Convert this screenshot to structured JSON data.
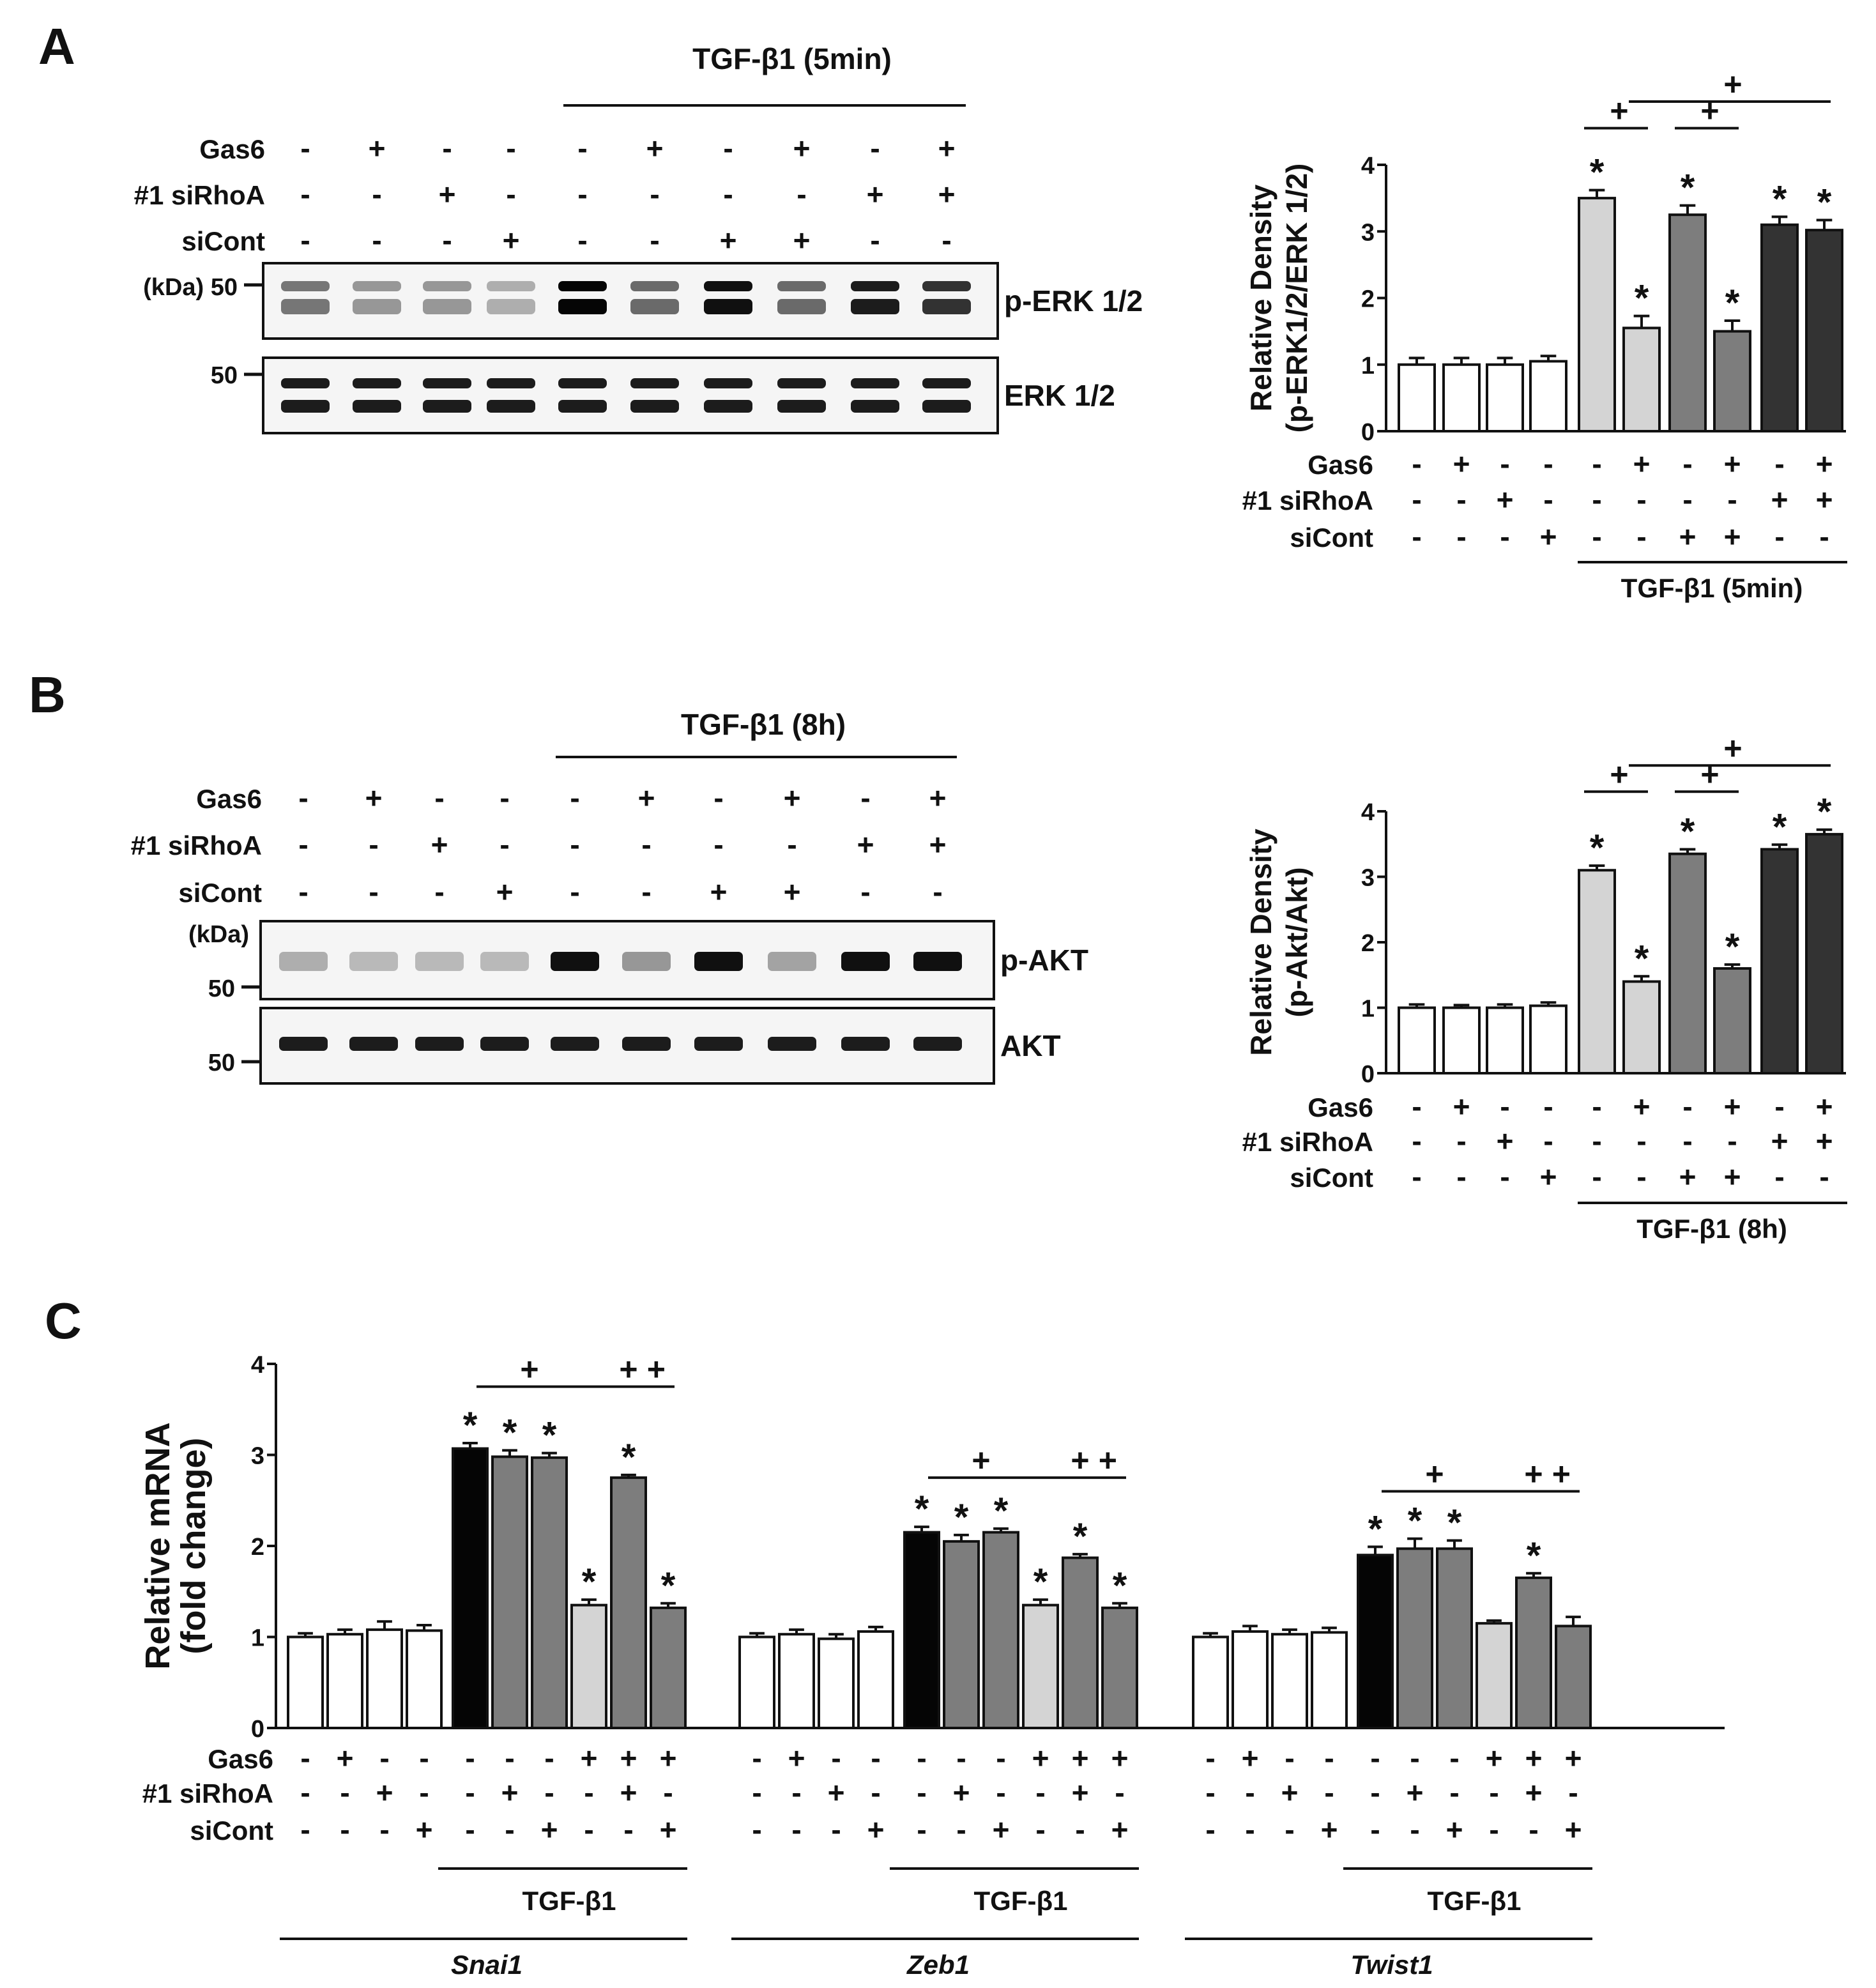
{
  "signs": {
    "plus": "+",
    "minus": "-",
    "star": "*"
  },
  "colors": {
    "white": "#ffffff",
    "black": "#050505",
    "light": "#d4d4d4",
    "mid": "#7d7d7d",
    "dark": "#333333",
    "line": "#111111"
  },
  "panelA": {
    "label": "A",
    "treatment_label": "TGF-β1 (5min)",
    "kda_label": "(kDa) 50",
    "marker_label": "50",
    "rows": [
      {
        "label": "Gas6",
        "signs": [
          "-",
          "+",
          "-",
          "-",
          "-",
          "+",
          "-",
          "+",
          "-",
          "+"
        ]
      },
      {
        "label": "#1 siRhoA",
        "signs": [
          "-",
          "-",
          "+",
          "-",
          "-",
          "-",
          "-",
          "-",
          "+",
          "+"
        ]
      },
      {
        "label": "siCont",
        "signs": [
          "-",
          "-",
          "-",
          "+",
          "-",
          "-",
          "+",
          "+",
          "-",
          "-"
        ]
      }
    ],
    "blots": [
      {
        "label": "p-ERK 1/2",
        "intensities": [
          0.5,
          0.35,
          0.35,
          0.25,
          1.0,
          0.55,
          0.95,
          0.55,
          0.9,
          0.8
        ]
      },
      {
        "label": "ERK 1/2",
        "intensities": [
          0.9,
          0.9,
          0.9,
          0.9,
          0.9,
          0.9,
          0.9,
          0.9,
          0.9,
          0.9
        ]
      }
    ]
  },
  "panelB": {
    "label": "B",
    "treatment_label": "TGF-β1 (8h)",
    "kda_label": "(kDa)",
    "marker_label": "50",
    "rows": [
      {
        "label": "Gas6",
        "signs": [
          "-",
          "+",
          "-",
          "-",
          "-",
          "+",
          "-",
          "+",
          "-",
          "+"
        ]
      },
      {
        "label": "#1 siRhoA",
        "signs": [
          "-",
          "-",
          "+",
          "-",
          "-",
          "-",
          "-",
          "-",
          "+",
          "+"
        ]
      },
      {
        "label": "siCont",
        "signs": [
          "-",
          "-",
          "-",
          "+",
          "-",
          "-",
          "+",
          "+",
          "-",
          "-"
        ]
      }
    ],
    "blots": [
      {
        "label": "p-AKT",
        "intensities": [
          0.25,
          0.2,
          0.2,
          0.2,
          0.95,
          0.35,
          0.95,
          0.3,
          0.95,
          0.95
        ]
      },
      {
        "label": "AKT",
        "intensities": [
          0.9,
          0.9,
          0.9,
          0.9,
          0.9,
          0.9,
          0.9,
          0.9,
          0.9,
          0.9
        ]
      }
    ]
  },
  "panelC": {
    "label": "C"
  },
  "chart_data": [
    {
      "id": "A",
      "type": "bar",
      "ylabel": [
        "Relative Density",
        "(p-ERK1/2/ERK 1/2)"
      ],
      "ylim": [
        0,
        4
      ],
      "yticks": [
        "0",
        "1",
        "2",
        "3",
        "4"
      ],
      "values": [
        1.0,
        1.0,
        1.0,
        1.05,
        3.5,
        1.55,
        3.25,
        1.5,
        3.1,
        3.02
      ],
      "errors": [
        0.1,
        0.1,
        0.1,
        0.08,
        0.12,
        0.18,
        0.14,
        0.16,
        0.12,
        0.15
      ],
      "colors": [
        "white",
        "white",
        "white",
        "white",
        "light",
        "light",
        "mid",
        "mid",
        "dark",
        "dark"
      ],
      "stars": [
        false,
        false,
        false,
        false,
        true,
        true,
        true,
        true,
        true,
        true
      ],
      "rows": [
        {
          "label": "Gas6",
          "signs": [
            "-",
            "+",
            "-",
            "-",
            "-",
            "+",
            "-",
            "+",
            "-",
            "+"
          ]
        },
        {
          "label": "#1 siRhoA",
          "signs": [
            "-",
            "-",
            "+",
            "-",
            "-",
            "-",
            "-",
            "-",
            "+",
            "+"
          ]
        },
        {
          "label": "siCont",
          "signs": [
            "-",
            "-",
            "-",
            "+",
            "-",
            "-",
            "+",
            "+",
            "-",
            "-"
          ]
        }
      ],
      "group_label": "TGF-β1 (5min)",
      "significance": [
        {
          "from": 4,
          "to": 5,
          "level": 4.55,
          "mark": "+"
        },
        {
          "from": 6,
          "to": 7,
          "level": 4.55,
          "mark": "+"
        },
        {
          "from": 5,
          "to": 9,
          "level": 4.95,
          "mark": "+"
        }
      ]
    },
    {
      "id": "B",
      "type": "bar",
      "ylabel": [
        "Relative Density",
        "(p-Akt/Akt)"
      ],
      "ylim": [
        0,
        4
      ],
      "yticks": [
        "0",
        "1",
        "2",
        "3",
        "4"
      ],
      "values": [
        1.0,
        1.0,
        1.0,
        1.03,
        3.1,
        1.4,
        3.35,
        1.6,
        3.42,
        3.65
      ],
      "errors": [
        0.05,
        0.04,
        0.05,
        0.05,
        0.07,
        0.08,
        0.07,
        0.06,
        0.07,
        0.07
      ],
      "colors": [
        "white",
        "white",
        "white",
        "white",
        "light",
        "light",
        "mid",
        "mid",
        "dark",
        "dark"
      ],
      "stars": [
        false,
        false,
        false,
        false,
        true,
        true,
        true,
        true,
        true,
        true
      ],
      "rows": [
        {
          "label": "Gas6",
          "signs": [
            "-",
            "+",
            "-",
            "-",
            "-",
            "+",
            "-",
            "+",
            "-",
            "+"
          ]
        },
        {
          "label": "#1 siRhoA",
          "signs": [
            "-",
            "-",
            "+",
            "-",
            "-",
            "-",
            "-",
            "-",
            "+",
            "+"
          ]
        },
        {
          "label": "siCont",
          "signs": [
            "-",
            "-",
            "-",
            "+",
            "-",
            "-",
            "+",
            "+",
            "-",
            "-"
          ]
        }
      ],
      "group_label": "TGF-β1 (8h)",
      "significance": [
        {
          "from": 4,
          "to": 5,
          "level": 4.3,
          "mark": "+"
        },
        {
          "from": 6,
          "to": 7,
          "level": 4.3,
          "mark": "+"
        },
        {
          "from": 5,
          "to": 9,
          "level": 4.7,
          "mark": "+"
        }
      ]
    },
    {
      "id": "C",
      "type": "bar",
      "ylabel": [
        "Relative mRNA",
        "(fold change)"
      ],
      "ylim": [
        0,
        4
      ],
      "yticks": [
        "0",
        "1",
        "2",
        "3",
        "4"
      ],
      "rows": [
        {
          "label": "Gas6",
          "signs": [
            "-",
            "+",
            "-",
            "-",
            "-",
            "-",
            "-",
            "+",
            "+",
            "+"
          ]
        },
        {
          "label": "#1 siRhoA",
          "signs": [
            "-",
            "-",
            "+",
            "-",
            "-",
            "+",
            "-",
            "-",
            "+",
            "-"
          ]
        },
        {
          "label": "siCont",
          "signs": [
            "-",
            "-",
            "-",
            "+",
            "-",
            "-",
            "+",
            "-",
            "-",
            "+"
          ]
        }
      ],
      "colors": [
        "white",
        "white",
        "white",
        "white",
        "black",
        "mid",
        "mid",
        "light",
        "mid",
        "mid"
      ],
      "genes": [
        {
          "name": "Snai1",
          "treatment": "TGF-β1",
          "values": [
            1.0,
            1.03,
            1.08,
            1.07,
            3.07,
            2.98,
            2.97,
            1.35,
            2.75,
            1.32
          ],
          "errors": [
            0.04,
            0.05,
            0.09,
            0.06,
            0.06,
            0.07,
            0.05,
            0.06,
            0.03,
            0.05
          ],
          "stars": [
            false,
            false,
            false,
            false,
            true,
            true,
            true,
            true,
            true,
            true
          ],
          "sig_line": [
            4,
            9
          ],
          "sig_level": 3.75,
          "plus_at": [
            5.5,
            8,
            8.7
          ]
        },
        {
          "name": "Zeb1",
          "treatment": "TGF-β1",
          "values": [
            1.0,
            1.03,
            0.98,
            1.06,
            2.15,
            2.05,
            2.15,
            1.35,
            1.87,
            1.32
          ],
          "errors": [
            0.04,
            0.05,
            0.05,
            0.05,
            0.06,
            0.07,
            0.04,
            0.06,
            0.04,
            0.05
          ],
          "stars": [
            false,
            false,
            false,
            false,
            true,
            true,
            true,
            true,
            true,
            true
          ],
          "sig_line": [
            4,
            9
          ],
          "sig_level": 2.75,
          "plus_at": [
            5.5,
            8,
            8.7
          ]
        },
        {
          "name": "Twist1",
          "treatment": "TGF-β1",
          "values": [
            1.0,
            1.06,
            1.03,
            1.05,
            1.9,
            1.97,
            1.97,
            1.15,
            1.65,
            1.12
          ],
          "errors": [
            0.04,
            0.06,
            0.05,
            0.05,
            0.09,
            0.11,
            0.09,
            0.03,
            0.05,
            0.1
          ],
          "stars": [
            false,
            false,
            false,
            false,
            true,
            true,
            true,
            false,
            true,
            false
          ],
          "sig_line": [
            4,
            9
          ],
          "sig_level": 2.6,
          "plus_at": [
            5.5,
            8,
            8.7
          ]
        }
      ]
    }
  ]
}
